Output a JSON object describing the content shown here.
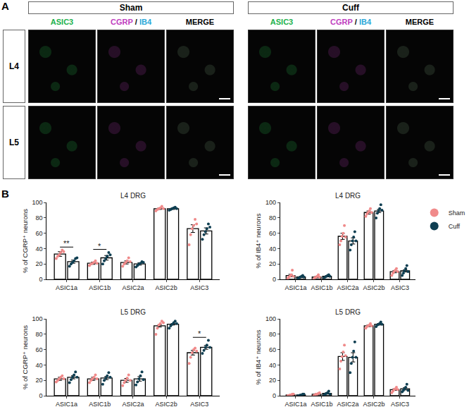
{
  "panel_a": {
    "label": "A",
    "groups": [
      "Sham",
      "Cuff"
    ],
    "columns": [
      [
        {
          "text": "ASIC3",
          "color": "#22b14c"
        }
      ],
      [
        {
          "text": "CGRP",
          "color": "#c040c0"
        },
        {
          "text": " / ",
          "color": "#000000"
        },
        {
          "text": "IB4",
          "color": "#2aa7d8"
        }
      ],
      [
        {
          "text": "MERGE",
          "color": "#000000"
        }
      ]
    ],
    "rows": [
      "L4",
      "L5"
    ]
  },
  "panel_b": {
    "label": "B"
  },
  "chart_data": [
    {
      "type": "bar",
      "title": "L4 DRG",
      "y_label": "% of CGRP⁺ neurons",
      "categories": [
        "ASIC1a",
        "ASIC1b",
        "ASIC2a",
        "ASIC2b",
        "ASIC3"
      ],
      "ylim": [
        0,
        100
      ],
      "yticks": [
        0,
        20,
        40,
        60,
        80,
        100
      ],
      "series": [
        {
          "name": "Sham",
          "color": "#f08a8a",
          "values": [
            33,
            21,
            22,
            92,
            66
          ],
          "error": [
            3,
            1.5,
            2,
            1,
            5
          ],
          "points": [
            [
              27,
              30,
              32,
              35,
              38,
              36
            ],
            [
              18,
              20,
              21,
              22,
              24,
              21
            ],
            [
              17,
              20,
              22,
              24,
              28,
              23
            ],
            [
              89,
              91,
              92,
              93,
              95,
              92
            ],
            [
              45,
              58,
              66,
              70,
              78,
              72
            ]
          ]
        },
        {
          "name": "Cuff",
          "color": "#0f3f52",
          "values": [
            23,
            28,
            20,
            92,
            63
          ],
          "error": [
            2,
            3,
            1.5,
            1,
            4
          ],
          "points": [
            [
              17,
              20,
              22,
              24,
              27,
              28
            ],
            [
              20,
              24,
              27,
              30,
              35,
              32
            ],
            [
              16,
              18,
              20,
              21,
              23,
              22
            ],
            [
              90,
              91,
              92,
              93,
              94,
              92
            ],
            [
              52,
              58,
              62,
              66,
              72,
              68
            ]
          ]
        }
      ],
      "annotations": [
        {
          "category": "ASIC1a",
          "text": "**"
        },
        {
          "category": "ASIC1b",
          "text": "*"
        }
      ]
    },
    {
      "type": "bar",
      "title": "L4 DRG",
      "y_label": "% of IB4⁺ neurons",
      "categories": [
        "ASIC1a",
        "ASIC1b",
        "ASIC2a",
        "ASIC2b",
        "ASIC3"
      ],
      "ylim": [
        0,
        100
      ],
      "yticks": [
        0,
        20,
        40,
        60,
        80,
        100
      ],
      "legend": "top right",
      "series": [
        {
          "name": "Sham",
          "color": "#f08a8a",
          "values": [
            5,
            3,
            56,
            87,
            10
          ],
          "error": [
            1.5,
            1,
            4,
            2,
            1.5
          ],
          "points": [
            [
              1,
              3,
              4,
              6,
              12,
              4
            ],
            [
              0,
              2,
              3,
              4,
              6,
              3
            ],
            [
              45,
              50,
              56,
              60,
              70,
              55
            ],
            [
              82,
              85,
              87,
              89,
              92,
              87
            ],
            [
              5,
              8,
              10,
              12,
              14,
              10
            ]
          ]
        },
        {
          "name": "Cuff",
          "color": "#0f3f52",
          "values": [
            3,
            4,
            50,
            89,
            11
          ],
          "error": [
            0.8,
            0.8,
            4,
            2,
            1.5
          ],
          "points": [
            [
              1,
              2,
              3,
              4,
              5,
              3
            ],
            [
              2,
              3,
              4,
              5,
              6,
              4
            ],
            [
              38,
              45,
              50,
              55,
              62,
              50
            ],
            [
              80,
              86,
              89,
              92,
              97,
              90
            ],
            [
              5,
              8,
              11,
              14,
              18,
              10
            ]
          ]
        }
      ],
      "annotations": []
    },
    {
      "type": "bar",
      "title": "L5 DRG",
      "y_label": "% of CGRP⁺ neurons",
      "categories": [
        "ASIC1a",
        "ASIC1b",
        "ASIC2a",
        "ASIC2b",
        "ASIC3"
      ],
      "ylim": [
        0,
        100
      ],
      "yticks": [
        0,
        20,
        40,
        60,
        80,
        100
      ],
      "series": [
        {
          "name": "Sham",
          "color": "#f08a8a",
          "values": [
            22,
            22,
            20,
            91,
            56
          ],
          "error": [
            2,
            2,
            2.5,
            1.5,
            3
          ],
          "points": [
            [
              18,
              20,
              22,
              24,
              26,
              22
            ],
            [
              17,
              20,
              22,
              24,
              27,
              22
            ],
            [
              13,
              17,
              20,
              23,
              27,
              20
            ],
            [
              80,
              88,
              92,
              94,
              97,
              95
            ],
            [
              42,
              50,
              56,
              60,
              62,
              58
            ]
          ]
        },
        {
          "name": "Cuff",
          "color": "#0f3f52",
          "values": [
            24,
            23,
            22,
            93,
            63
          ],
          "error": [
            2,
            2,
            3,
            1,
            2.5
          ],
          "points": [
            [
              17,
              21,
              24,
              27,
              31,
              24
            ],
            [
              15,
              20,
              23,
              26,
              30,
              24
            ],
            [
              14,
              18,
              22,
              26,
              31,
              21
            ],
            [
              88,
              91,
              93,
              95,
              97,
              94
            ],
            [
              55,
              59,
              63,
              66,
              72,
              63
            ]
          ]
        }
      ],
      "annotations": [
        {
          "category": "ASIC3",
          "text": "*"
        }
      ]
    },
    {
      "type": "bar",
      "title": "L5 DRG",
      "y_label": "% of IB4⁺ neurons",
      "categories": [
        "ASIC1a",
        "ASIC1b",
        "ASIC2a",
        "ASIC2b",
        "ASIC3"
      ],
      "ylim": [
        0,
        100
      ],
      "yticks": [
        0,
        20,
        40,
        60,
        80,
        100
      ],
      "series": [
        {
          "name": "Sham",
          "color": "#f08a8a",
          "values": [
            1,
            2,
            51,
            91,
            8
          ],
          "error": [
            0.5,
            0.6,
            5,
            1,
            1
          ],
          "points": [
            [
              0,
              0,
              1,
              1,
              2,
              2
            ],
            [
              0,
              1,
              2,
              2,
              3,
              4
            ],
            [
              35,
              45,
              51,
              57,
              66,
              52
            ],
            [
              88,
              90,
              91,
              92,
              94,
              91
            ],
            [
              4,
              6,
              8,
              9,
              11,
              8
            ]
          ]
        },
        {
          "name": "Cuff",
          "color": "#0f3f52",
          "values": [
            1,
            3,
            50,
            93,
            9
          ],
          "error": [
            0.5,
            0.8,
            6,
            1,
            1.5
          ],
          "points": [
            [
              0,
              0,
              1,
              1,
              2,
              2
            ],
            [
              1,
              2,
              3,
              4,
              6,
              2
            ],
            [
              30,
              42,
              50,
              58,
              70,
              50
            ],
            [
              90,
              92,
              93,
              94,
              96,
              93
            ],
            [
              5,
              7,
              9,
              11,
              15,
              7
            ]
          ]
        }
      ],
      "annotations": []
    }
  ]
}
